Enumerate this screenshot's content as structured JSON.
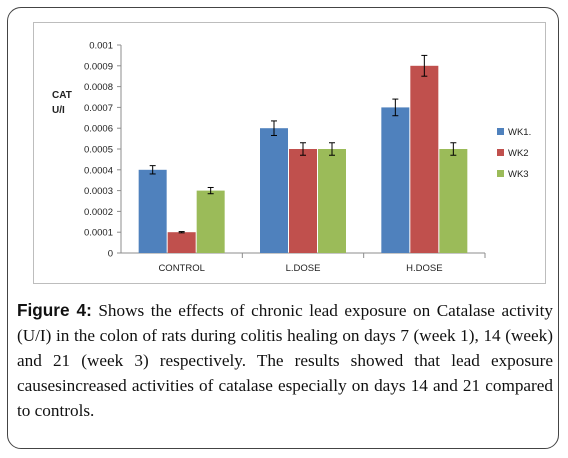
{
  "chart_data": {
    "type": "bar",
    "title": "",
    "ylabel": "CAT U/I",
    "ylabel_lines": [
      "CAT",
      "U/I"
    ],
    "xlabel": "",
    "categories": [
      "CONTROL",
      "L.DOSE",
      "H.DOSE"
    ],
    "ylim": [
      0,
      0.001
    ],
    "yticks": [
      "0",
      "0.0001",
      "0.0002",
      "0.0003",
      "0.0004",
      "0.0005",
      "0.0006",
      "0.0007",
      "0.0008",
      "0.0009",
      "0.001"
    ],
    "legend_position": "right",
    "grid": false,
    "series": [
      {
        "name": "WK1.",
        "color": "#4f81bd",
        "values": [
          0.0004,
          0.0006,
          0.0007
        ],
        "errors": [
          2e-05,
          3.5e-05,
          4e-05
        ]
      },
      {
        "name": "WK2",
        "color": "#c0504d",
        "values": [
          0.0001,
          0.0005,
          0.0009
        ],
        "errors": [
          3e-06,
          3e-05,
          5e-05
        ]
      },
      {
        "name": "WK3",
        "color": "#9bbb59",
        "values": [
          0.0003,
          0.0005,
          0.0005
        ],
        "errors": [
          1.5e-05,
          3e-05,
          3e-05
        ]
      }
    ]
  },
  "caption": {
    "label": "Figure 4:",
    "text": " Shows the effects of chronic lead exposure on Catalase activity (U/I) in the colon of rats during colitis healing on days 7 (week 1), 14 (week) and 21 (week 3) respectively. The results showed that lead exposure causesincreased activities of catalase especially on days 14 and 21 compared to controls."
  }
}
